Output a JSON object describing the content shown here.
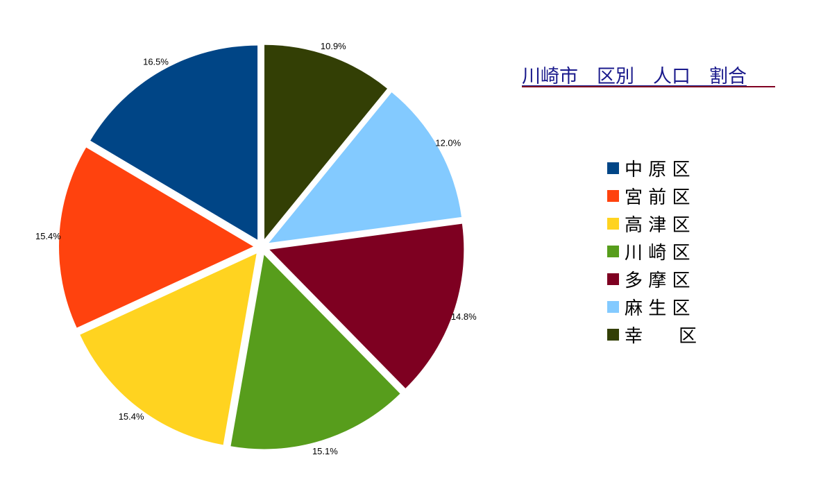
{
  "chart_data": {
    "type": "pie",
    "title": "川崎市　区別　人口　割合",
    "slices": [
      {
        "name": "幸　　区",
        "value": 10.9,
        "label": "10.9%",
        "color": "#333f05"
      },
      {
        "name": "麻 生 区",
        "value": 12.0,
        "label": "12.0%",
        "color": "#83caff"
      },
      {
        "name": "多 摩 区",
        "value": 14.8,
        "label": "14.8%",
        "color": "#7e0021"
      },
      {
        "name": "川 崎 区",
        "value": 15.1,
        "label": "15.1%",
        "color": "#579d1c"
      },
      {
        "name": "高 津 区",
        "value": 15.4,
        "label": "15.4%",
        "color": "#ffd320"
      },
      {
        "name": "宮 前 区",
        "value": 15.4,
        "label": "15.4%",
        "color": "#ff420e"
      },
      {
        "name": "中 原 区",
        "value": 16.5,
        "label": "16.5%",
        "color": "#004586"
      }
    ],
    "legend": {
      "position": "right",
      "items": [
        {
          "label": "中 原 区",
          "color": "#004586"
        },
        {
          "label": "宮 前 区",
          "color": "#ff420e"
        },
        {
          "label": "高 津 区",
          "color": "#ffd320"
        },
        {
          "label": "川 崎 区",
          "color": "#579d1c"
        },
        {
          "label": "多 摩 区",
          "color": "#7e0021"
        },
        {
          "label": "麻 生 区",
          "color": "#83caff"
        },
        {
          "label": "幸　　区",
          "color": "#333f05"
        }
      ]
    },
    "exploded": true,
    "start_angle": "12 o'clock, clockwise"
  },
  "colors": {
    "title": "#1a1a8c",
    "title_underline": "#800020"
  }
}
